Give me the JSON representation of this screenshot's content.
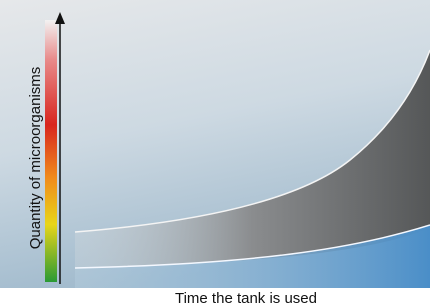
{
  "axes": {
    "y_label": "Quantity of microorganisms",
    "x_label": "Time the tank is used"
  }
}
